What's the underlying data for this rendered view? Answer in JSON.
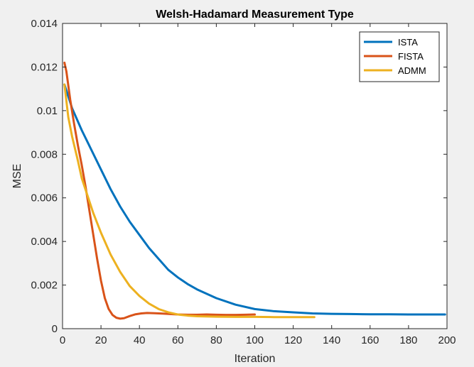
{
  "chart_data": {
    "type": "line",
    "title": "Welsh-Hadamard Measurement Type",
    "xlabel": "Iteration",
    "ylabel": "MSE",
    "xlim": [
      0,
      200
    ],
    "ylim": [
      0,
      0.014
    ],
    "xticks": [
      0,
      20,
      40,
      60,
      80,
      100,
      120,
      140,
      160,
      180,
      200
    ],
    "yticks": [
      0,
      0.002,
      0.004,
      0.006,
      0.008,
      0.01,
      0.012,
      0.014
    ],
    "xtick_labels": [
      "0",
      "20",
      "40",
      "60",
      "80",
      "100",
      "120",
      "140",
      "160",
      "180",
      "200"
    ],
    "ytick_labels": [
      "0",
      "0.002",
      "0.004",
      "0.006",
      "0.008",
      "0.01",
      "0.012",
      "0.014"
    ],
    "grid": false,
    "legend_position": "top-right",
    "series": [
      {
        "name": "ISTA",
        "color": "#0072bd",
        "x": [
          1,
          5,
          10,
          15,
          20,
          25,
          30,
          35,
          40,
          45,
          50,
          55,
          60,
          65,
          70,
          75,
          80,
          90,
          100,
          110,
          120,
          130,
          140,
          150,
          160,
          170,
          180,
          190,
          199
        ],
        "y": [
          0.0112,
          0.0101,
          0.0091,
          0.0082,
          0.0073,
          0.0064,
          0.0056,
          0.0049,
          0.0043,
          0.0037,
          0.0032,
          0.0027,
          0.00235,
          0.00205,
          0.0018,
          0.0016,
          0.0014,
          0.0011,
          0.0009,
          0.0008,
          0.00075,
          0.0007,
          0.00068,
          0.00067,
          0.00066,
          0.00066,
          0.00065,
          0.00065,
          0.00065
        ]
      },
      {
        "name": "FISTA",
        "color": "#d95319",
        "x": [
          1,
          2,
          4,
          6,
          8,
          10,
          12,
          14,
          16,
          18,
          20,
          22,
          24,
          26,
          28,
          30,
          32,
          35,
          38,
          41,
          44,
          48,
          52,
          56,
          60,
          65,
          70,
          75,
          80,
          85,
          90,
          95,
          100
        ],
        "y": [
          0.0122,
          0.0118,
          0.0105,
          0.0094,
          0.0084,
          0.0075,
          0.0065,
          0.0054,
          0.0043,
          0.0032,
          0.0022,
          0.0014,
          0.0009,
          0.00063,
          0.0005,
          0.00046,
          0.00048,
          0.00058,
          0.00066,
          0.0007,
          0.00072,
          0.00071,
          0.00069,
          0.00067,
          0.00065,
          0.00064,
          0.00064,
          0.00065,
          0.00064,
          0.00063,
          0.00063,
          0.00064,
          0.00065
        ]
      },
      {
        "name": "ADMM",
        "color": "#edb120",
        "x": [
          1,
          3,
          5,
          8,
          10,
          13,
          16,
          20,
          25,
          30,
          35,
          40,
          45,
          50,
          55,
          60,
          65,
          70,
          80,
          90,
          100,
          110,
          120,
          131
        ],
        "y": [
          0.0112,
          0.0097,
          0.0088,
          0.0077,
          0.0069,
          0.0061,
          0.0053,
          0.0044,
          0.0034,
          0.0026,
          0.00195,
          0.0015,
          0.00115,
          0.0009,
          0.00075,
          0.00065,
          0.0006,
          0.00057,
          0.00055,
          0.00054,
          0.00054,
          0.00053,
          0.00053,
          0.00053
        ]
      }
    ]
  }
}
